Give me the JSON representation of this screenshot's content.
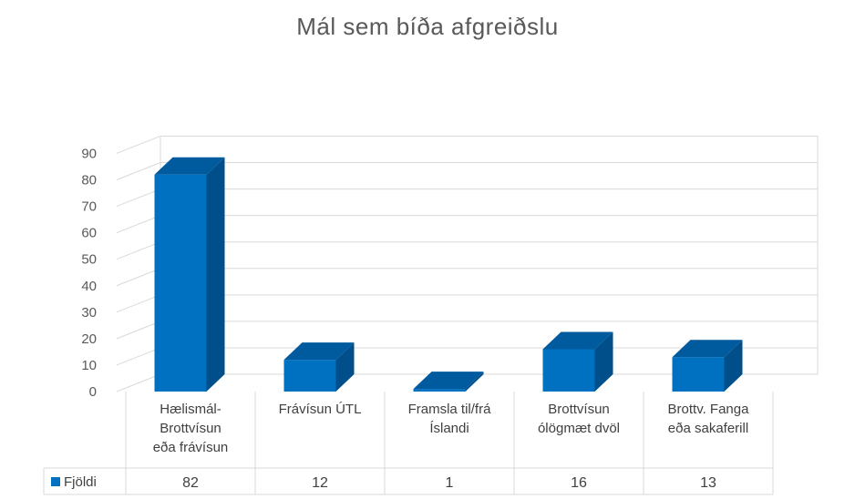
{
  "chart_data": {
    "type": "bar",
    "title": "Mál sem bíða afgreiðslu",
    "categories": [
      [
        "Hælismál-",
        "Brottvísun",
        "eða frávísun"
      ],
      [
        "Frávísun ÚTL"
      ],
      [
        "Framsla til/frá",
        "Íslandi"
      ],
      [
        "Brottvísun",
        "ólögmæt dvöl"
      ],
      [
        "Brottv. Fanga",
        "eða sakaferill"
      ]
    ],
    "series": [
      {
        "name": "Fjöldi",
        "values": [
          82,
          12,
          1,
          16,
          13
        ],
        "color": "#0070C0"
      }
    ],
    "ylim": [
      0,
      90
    ],
    "yticks": [
      0,
      10,
      20,
      30,
      40,
      50,
      60,
      70,
      80,
      90
    ],
    "grid": true,
    "data_table": true,
    "style": "3d-column"
  }
}
